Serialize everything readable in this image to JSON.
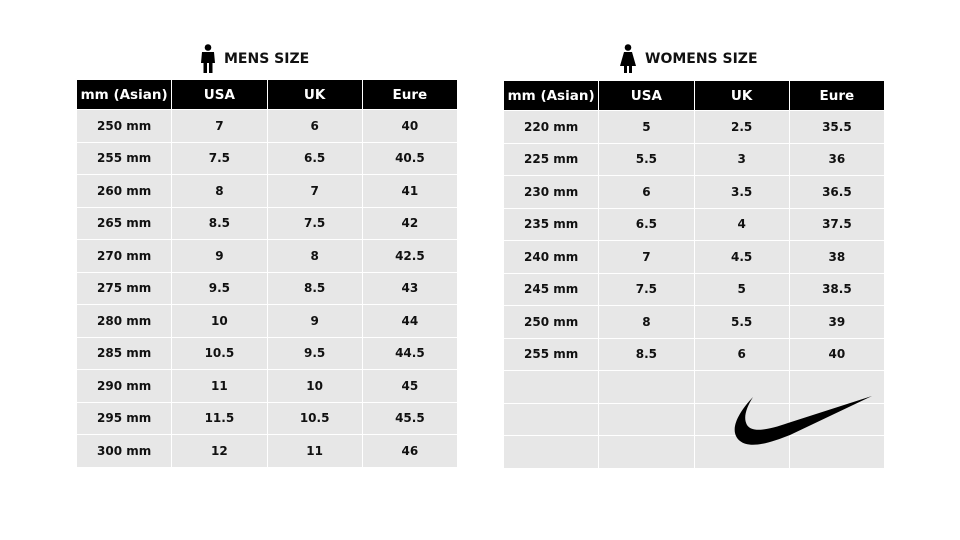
{
  "mens": {
    "title": "MENS SIZE",
    "icon": "man-icon",
    "headers": [
      "mm (Asian)",
      "USA",
      "UK",
      "Eure"
    ],
    "rows": [
      [
        "250  mm",
        "7",
        "6",
        "40"
      ],
      [
        "255  mm",
        "7.5",
        "6.5",
        "40.5"
      ],
      [
        "260  mm",
        "8",
        "7",
        "41"
      ],
      [
        "265  mm",
        "8.5",
        "7.5",
        "42"
      ],
      [
        "270  mm",
        "9",
        "8",
        "42.5"
      ],
      [
        "275  mm",
        "9.5",
        "8.5",
        "43"
      ],
      [
        "280  mm",
        "10",
        "9",
        "44"
      ],
      [
        "285  mm",
        "10.5",
        "9.5",
        "44.5"
      ],
      [
        "290  mm",
        "11",
        "10",
        "45"
      ],
      [
        "295  mm",
        "11.5",
        "10.5",
        "45.5"
      ],
      [
        "300  mm",
        "12",
        "11",
        "46"
      ]
    ]
  },
  "womens": {
    "title": "WOMENS SIZE",
    "icon": "woman-icon",
    "headers": [
      "mm (Asian)",
      "USA",
      "UK",
      "Eure"
    ],
    "rows": [
      [
        "220  mm",
        "5",
        "2.5",
        "35.5"
      ],
      [
        "225  mm",
        "5.5",
        "3",
        "36"
      ],
      [
        "230  mm",
        "6",
        "3.5",
        "36.5"
      ],
      [
        "235  mm",
        "6.5",
        "4",
        "37.5"
      ],
      [
        "240  mm",
        "7",
        "4.5",
        "38"
      ],
      [
        "245  mm",
        "7.5",
        "5",
        "38.5"
      ],
      [
        "250  mm",
        "8",
        "5.5",
        "39"
      ],
      [
        "255  mm",
        "8.5",
        "6",
        "40"
      ],
      [
        "",
        "",
        "",
        ""
      ],
      [
        "",
        "",
        "",
        ""
      ],
      [
        "",
        "",
        "",
        ""
      ]
    ]
  },
  "logo": {
    "icon": "nike-swoosh-logo",
    "color": "#000000"
  }
}
